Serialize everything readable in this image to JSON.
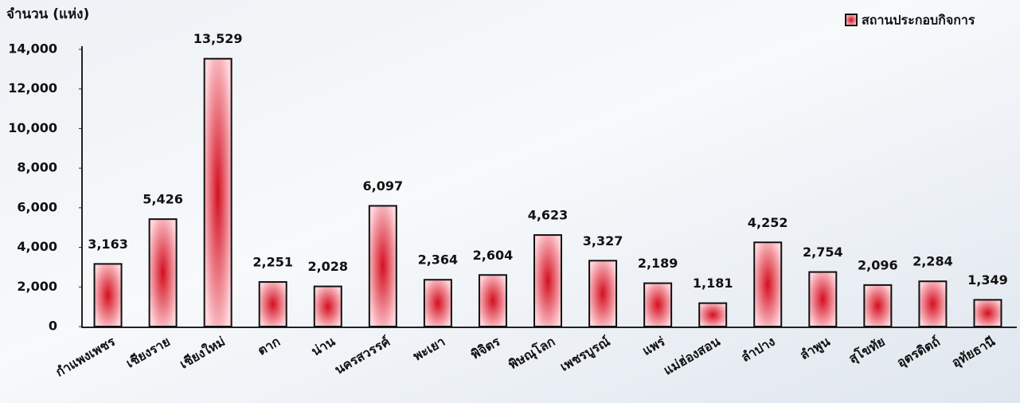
{
  "chart_data": {
    "type": "bar",
    "y_label": "จำนวน (แห่ง)",
    "legend": "สถานประกอบกิจการ",
    "legend_position": "upper right",
    "color": "#d40f1f",
    "categories": [
      "กำแพงเพชร",
      "เชียงราย",
      "เชียงใหม่",
      "ตาก",
      "น่าน",
      "นครสวรรค์",
      "พะเยา",
      "พิจิตร",
      "พิษณุโลก",
      "เพชรบูรณ์",
      "แพร่",
      "แม่ฮ่องสอน",
      "ลำปาง",
      "ลำพูน",
      "สุโขทัย",
      "อุตรดิตถ์",
      "อุทัยธานี"
    ],
    "values": [
      3163,
      5426,
      13529,
      2251,
      2028,
      6097,
      2364,
      2604,
      4623,
      3327,
      2189,
      1181,
      4252,
      2754,
      2096,
      2284,
      1349
    ],
    "value_labels": [
      "3,163",
      "5,426",
      "13,529",
      "2,251",
      "2,028",
      "6,097",
      "2,364",
      "2,604",
      "4,623",
      "3,327",
      "2,189",
      "1,181",
      "4,252",
      "2,754",
      "2,096",
      "2,284",
      "1,349"
    ],
    "ylim": [
      0,
      14000
    ],
    "yticks": [
      0,
      {
        "value": 2000,
        "label": "2,000"
      },
      {
        "value": 4000,
        "label": "4,000"
      },
      {
        "value": 6000,
        "label": "6,000"
      },
      {
        "value": 8000,
        "label": "8,000"
      },
      {
        "value": 10000,
        "label": "10,000"
      },
      {
        "value": 12000,
        "label": "12,000"
      },
      {
        "value": 14000,
        "label": "14,000"
      }
    ],
    "grid": false
  }
}
